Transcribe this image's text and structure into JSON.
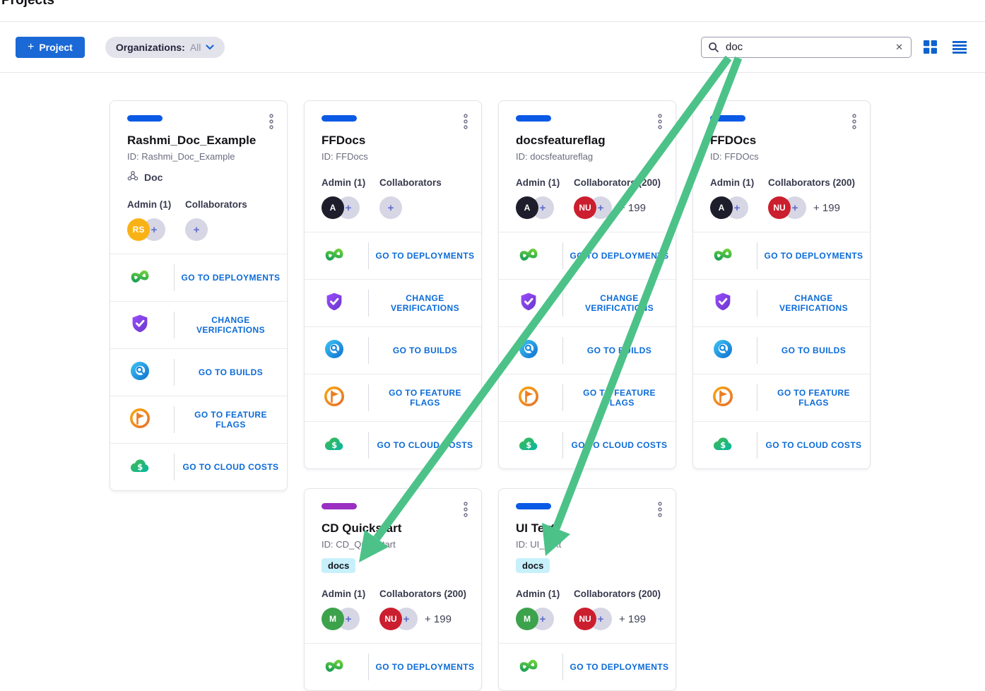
{
  "page": {
    "title": "Projects"
  },
  "toolbar": {
    "new_project": {
      "plus": "+",
      "label": "Project"
    },
    "org_filter": {
      "label": "Organizations:",
      "value": "All"
    },
    "search": {
      "value": "doc",
      "clear_glyph": "✕"
    }
  },
  "colors": {
    "primary_blue": "#1a69d6",
    "link_blue": "#0b6bd7",
    "bar_blue": "#0b5ae6",
    "bar_purple": "#9b2fc2",
    "tag_bg": "#c7f0fb",
    "arrow_green": "#4cc289"
  },
  "cards": [
    {
      "name": "Rashmi_Doc_Example",
      "id": "ID: Rashmi_Doc_Example",
      "bar_color": "#0b5ae6",
      "org": "Doc",
      "admin": {
        "label": "Admin (1)",
        "avatars": [
          {
            "text": "RS",
            "bg": "#f9b216"
          }
        ]
      },
      "collaborators": {
        "label": "Collaborators",
        "avatars": [],
        "overflow": ""
      },
      "actions": [
        {
          "label": "GO TO DEPLOYMENTS",
          "icon": "deployments-icon"
        },
        {
          "label": "CHANGE VERIFICATIONS",
          "icon": "verifications-icon"
        },
        {
          "label": "GO TO BUILDS",
          "icon": "builds-icon"
        },
        {
          "label": "GO TO FEATURE FLAGS",
          "icon": "feature-flags-icon"
        },
        {
          "label": "GO TO CLOUD COSTS",
          "icon": "cloud-costs-icon"
        }
      ]
    },
    {
      "name": "FFDocs",
      "id": "ID: FFDocs",
      "bar_color": "#0b5ae6",
      "admin": {
        "label": "Admin (1)",
        "avatars": [
          {
            "text": "A",
            "bg": "#1d1d2c"
          }
        ]
      },
      "collaborators": {
        "label": "Collaborators",
        "avatars": [],
        "overflow": ""
      },
      "actions": [
        {
          "label": "GO TO DEPLOYMENTS",
          "icon": "deployments-icon"
        },
        {
          "label": "CHANGE VERIFICATIONS",
          "icon": "verifications-icon"
        },
        {
          "label": "GO TO BUILDS",
          "icon": "builds-icon"
        },
        {
          "label": "GO TO FEATURE FLAGS",
          "icon": "feature-flags-icon"
        },
        {
          "label": "GO TO CLOUD COSTS",
          "icon": "cloud-costs-icon"
        }
      ]
    },
    {
      "name": "docsfeatureflag",
      "id": "ID: docsfeatureflag",
      "bar_color": "#0b5ae6",
      "admin": {
        "label": "Admin (1)",
        "avatars": [
          {
            "text": "A",
            "bg": "#1d1d2c"
          }
        ]
      },
      "collaborators": {
        "label": "Collaborators (200)",
        "avatars": [
          {
            "text": "NU",
            "bg": "#cb1e2e"
          }
        ],
        "overflow": "+ 199"
      },
      "actions": [
        {
          "label": "GO TO DEPLOYMENTS",
          "icon": "deployments-icon"
        },
        {
          "label": "CHANGE VERIFICATIONS",
          "icon": "verifications-icon"
        },
        {
          "label": "GO TO BUILDS",
          "icon": "builds-icon"
        },
        {
          "label": "GO TO FEATURE FLAGS",
          "icon": "feature-flags-icon"
        },
        {
          "label": "GO TO CLOUD COSTS",
          "icon": "cloud-costs-icon"
        }
      ]
    },
    {
      "name": "FFDOcs",
      "id": "ID: FFDOcs",
      "bar_color": "#0b5ae6",
      "admin": {
        "label": "Admin (1)",
        "avatars": [
          {
            "text": "A",
            "bg": "#1d1d2c"
          }
        ]
      },
      "collaborators": {
        "label": "Collaborators (200)",
        "avatars": [
          {
            "text": "NU",
            "bg": "#cb1e2e"
          }
        ],
        "overflow": "+ 199"
      },
      "actions": [
        {
          "label": "GO TO DEPLOYMENTS",
          "icon": "deployments-icon"
        },
        {
          "label": "CHANGE VERIFICATIONS",
          "icon": "verifications-icon"
        },
        {
          "label": "GO TO BUILDS",
          "icon": "builds-icon"
        },
        {
          "label": "GO TO FEATURE FLAGS",
          "icon": "feature-flags-icon"
        },
        {
          "label": "GO TO CLOUD COSTS",
          "icon": "cloud-costs-icon"
        }
      ]
    },
    {
      "name": "CD Quickstart",
      "id": "ID: CD_Quickstart",
      "bar_color": "#9b2fc2",
      "tag": "docs",
      "admin": {
        "label": "Admin (1)",
        "avatars": [
          {
            "text": "M",
            "bg": "#3ca24c"
          }
        ]
      },
      "collaborators": {
        "label": "Collaborators (200)",
        "avatars": [
          {
            "text": "NU",
            "bg": "#cb1e2e"
          }
        ],
        "overflow": "+ 199"
      },
      "actions": [
        {
          "label": "GO TO DEPLOYMENTS",
          "icon": "deployments-icon"
        }
      ]
    },
    {
      "name": "UI Text",
      "id": "ID: UI_Text",
      "bar_color": "#0b5ae6",
      "tag": "docs",
      "admin": {
        "label": "Admin (1)",
        "avatars": [
          {
            "text": "M",
            "bg": "#3ca24c"
          }
        ]
      },
      "collaborators": {
        "label": "Collaborators (200)",
        "avatars": [
          {
            "text": "NU",
            "bg": "#cb1e2e"
          }
        ],
        "overflow": "+ 199"
      },
      "actions": [
        {
          "label": "GO TO DEPLOYMENTS",
          "icon": "deployments-icon"
        }
      ]
    }
  ]
}
